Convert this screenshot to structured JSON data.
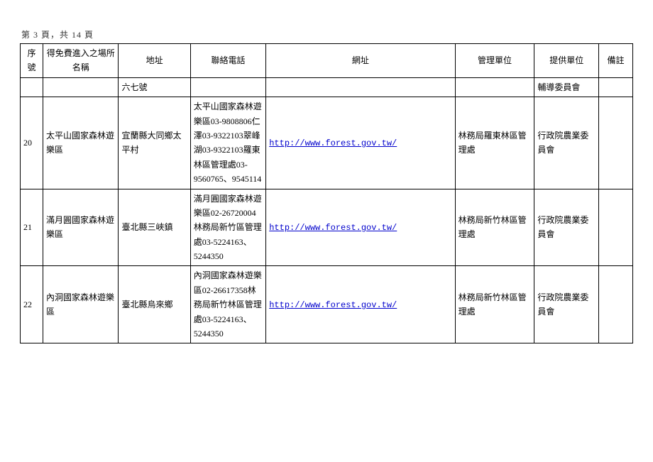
{
  "page_indicator": "第 3 頁，共 14 頁",
  "headers": {
    "seq": "序號",
    "name": "得免費進入之場所名稱",
    "addr": "地址",
    "phone": "聯絡電話",
    "url": "網址",
    "mgmt": "管理單位",
    "prov": "提供單位",
    "note": "備註"
  },
  "continuation_row": {
    "seq": "",
    "name": "",
    "addr": "六七號",
    "phone": "",
    "url": "",
    "mgmt": "",
    "prov": "輔導委員會",
    "note": ""
  },
  "rows": [
    {
      "seq": "20",
      "name": "太平山國家森林遊樂區",
      "addr": "宜蘭縣大同鄉太平村",
      "phone": "太平山國家森林遊樂區03-9808806仁澤03-9322103翠峰湖03-9322103羅東林區管理處03-9560765、9545114",
      "url": "http://www.forest.gov.tw/",
      "mgmt": "林務局羅東林區管理處",
      "prov": "行政院農業委員會",
      "note": ""
    },
    {
      "seq": "21",
      "name": "滿月圓國家森林遊樂區",
      "addr": "臺北縣三峽鎮",
      "phone": "滿月圓國家森林遊樂區02-26720004林務局新竹區管理處03-5224163、5244350",
      "url": "http://www.forest.gov.tw/",
      "mgmt": "林務局新竹林區管理處",
      "prov": "行政院農業委員會",
      "note": ""
    },
    {
      "seq": "22",
      "name": "內洞國家森林遊樂區",
      "addr": "臺北縣烏來鄉",
      "phone": "內洞國家森林遊樂區02-26617358林務局新竹林區管理處03-5224163、5244350",
      "url": "http://www.forest.gov.tw/",
      "mgmt": "林務局新竹林區管理處",
      "prov": "行政院農業委員會",
      "note": ""
    }
  ]
}
